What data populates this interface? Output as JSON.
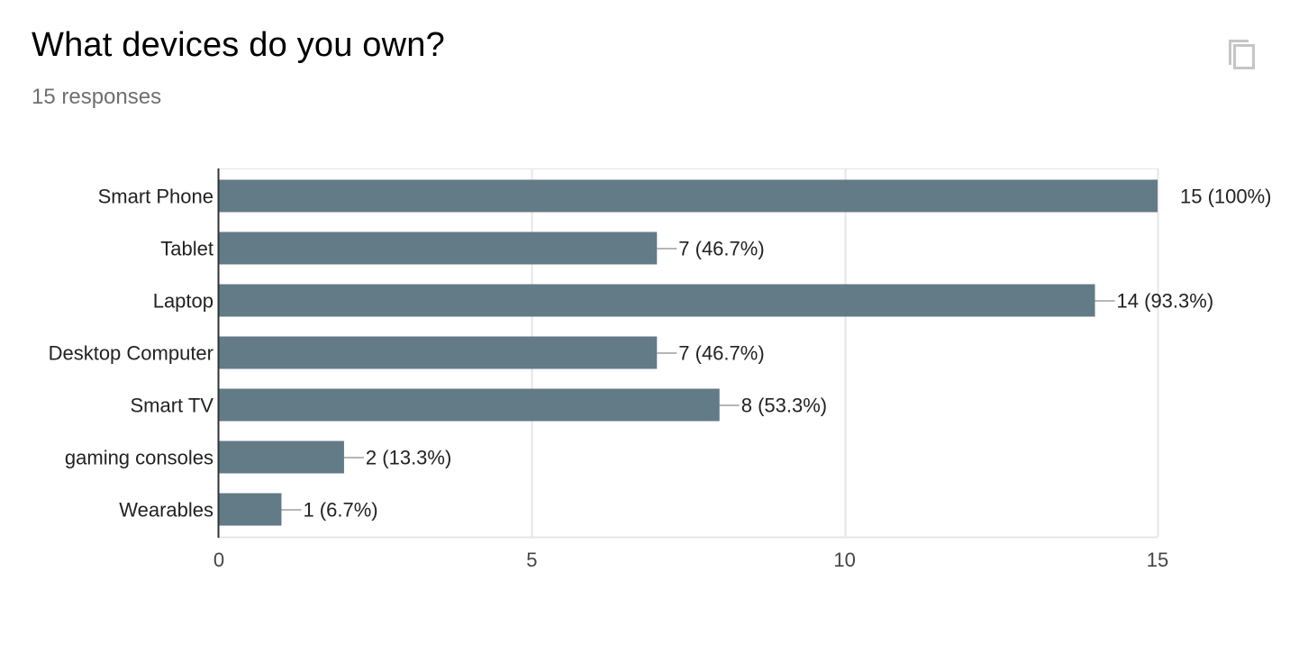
{
  "question": {
    "title": "What devices do you own?",
    "responses": "15 responses"
  },
  "actions": {
    "copy_icon": "copy-icon"
  },
  "colors": {
    "bar": "#637a87",
    "grid": "#e6e6e6",
    "axis": "#333333",
    "leader": "#9e9e9e",
    "label": "#222222"
  },
  "chart_data": {
    "type": "bar",
    "orientation": "horizontal",
    "categories": [
      "Smart Phone",
      "Tablet",
      "Laptop",
      "Desktop Computer",
      "Smart TV",
      "gaming consoles",
      "Wearables"
    ],
    "values": [
      15,
      7,
      14,
      7,
      8,
      2,
      1
    ],
    "data_labels": [
      "15 (100%)",
      "7 (46.7%)",
      "14 (93.3%)",
      "7 (46.7%)",
      "8 (53.3%)",
      "2 (13.3%)",
      "1 (6.7%)"
    ],
    "xlim": [
      0,
      15
    ],
    "xticks": [
      0,
      5,
      10,
      15
    ],
    "grid": true,
    "legend": "none"
  }
}
